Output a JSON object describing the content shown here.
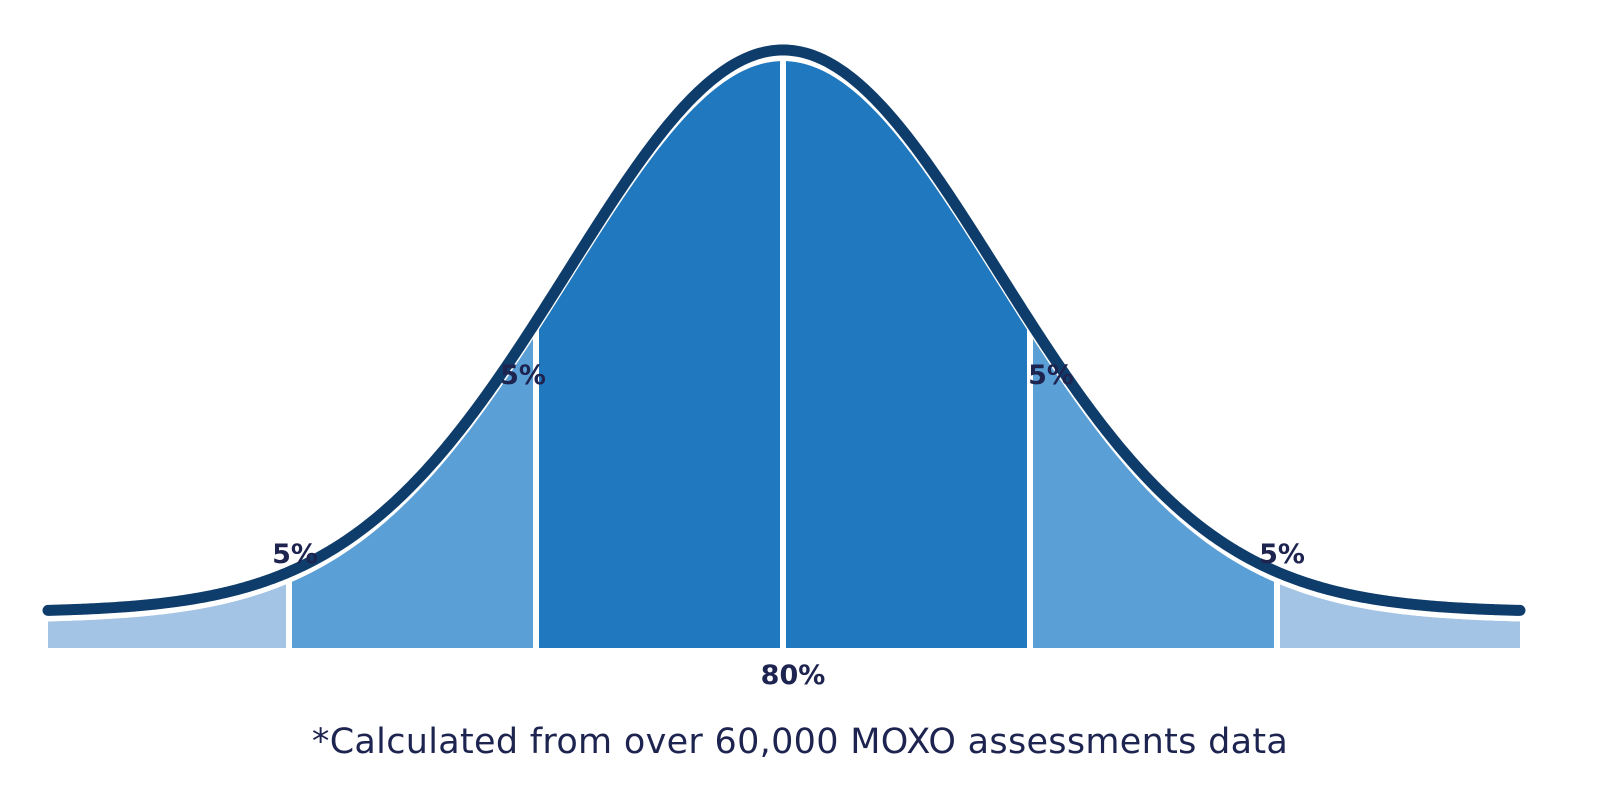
{
  "chart_data": {
    "type": "area",
    "distribution": "normal",
    "segments": [
      {
        "label": "",
        "color": "#a4c4e6"
      },
      {
        "label": "5%",
        "color": "#5a9fd6"
      },
      {
        "label": "5%",
        "color": "#2079bf"
      },
      {
        "label": "80%",
        "color": "#2079bf"
      },
      {
        "label": "5%",
        "color": "#5a9fd6"
      },
      {
        "label": "5%",
        "color": "#a4c4e6"
      }
    ],
    "curve_color": "#0e3d6b"
  },
  "footnote": "*Calculated from over 60,000 MOXO assessments data"
}
